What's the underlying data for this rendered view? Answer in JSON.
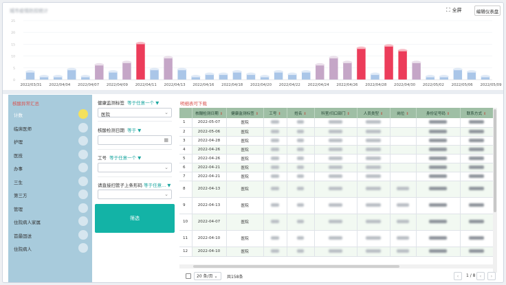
{
  "header": {
    "title": "城市疫情防控统计",
    "fullscreen_label": "全屏",
    "edit_label": "编辑仪表盘"
  },
  "chart_data": {
    "type": "bar",
    "ylim": [
      0,
      25
    ],
    "y_ticks": [
      "25",
      "20",
      "15",
      "10",
      "5",
      "0"
    ],
    "x_tick_labels": [
      "2022/03/31",
      "2022/04/04",
      "2022/04/07",
      "2022/04/09",
      "2022/04/11",
      "2022/04/13",
      "2022/04/16",
      "2022/04/18",
      "2022/04/20",
      "2022/04/22",
      "2022/04/24",
      "2022/04/26",
      "2022/04/28",
      "2022/04/30",
      "2022/05/02",
      "2022/05/06",
      "2022/05/09"
    ],
    "values": [
      3,
      1,
      1,
      4,
      1,
      6,
      3,
      7,
      15,
      4,
      9,
      4,
      1,
      2,
      2,
      3,
      2,
      1,
      3,
      2,
      3,
      6,
      9,
      7,
      13,
      2,
      14,
      12,
      7,
      1,
      1,
      4,
      3,
      1
    ],
    "bar_colors": {
      "low": "#aac6e8",
      "mid": "#c5a6c7",
      "high": "#ec3c5a"
    }
  },
  "left": {
    "title": "核酸异常汇总",
    "items": [
      "计数",
      "临床医师",
      "护理",
      "医技",
      "办事",
      "三生",
      "第三方",
      "管理",
      "住院病人家属",
      "首最固送",
      "住院病人"
    ]
  },
  "filters": {
    "field1_label": "健康监测标签",
    "field1_cond": "等于任意一个 ▼",
    "field1_value": "医院",
    "field2_label": "核酸检测日期",
    "field2_cond": "等于 ▼",
    "field3_label": "工号",
    "field3_cond": "等于任意一个 ▼",
    "field4_label": "请直接扫管子上条形码",
    "field4_cond": "等于任意...",
    "filter_button": "筛选"
  },
  "table": {
    "title": "明细表可下载",
    "columns": [
      "",
      "核酸检测日期",
      "健康监测标签",
      "工号",
      "姓名",
      "科室/归口部门",
      "人员类型",
      "岗位",
      "身份证号码",
      "联系方式"
    ],
    "rows": [
      {
        "idx": "1",
        "date": "2022-05-07",
        "tag": "医院"
      },
      {
        "idx": "2",
        "date": "2022-05-06",
        "tag": "医院"
      },
      {
        "idx": "3",
        "date": "2022-04-28",
        "tag": "医院"
      },
      {
        "idx": "4",
        "date": "2022-04-26",
        "tag": "医院"
      },
      {
        "idx": "5",
        "date": "2022-04-26",
        "tag": "医院"
      },
      {
        "idx": "6",
        "date": "2022-04-21",
        "tag": "医院"
      },
      {
        "idx": "7",
        "date": "2022-04-21",
        "tag": "医院"
      },
      {
        "idx": "8",
        "date": "2022-04-13",
        "tag": "医院"
      },
      {
        "idx": "9",
        "date": "2022-04-13",
        "tag": "医院"
      },
      {
        "idx": "10",
        "date": "2022-04-07",
        "tag": "医院"
      },
      {
        "idx": "11",
        "date": "2022-04-10",
        "tag": "医院"
      },
      {
        "idx": "12",
        "date": "2022-04-10",
        "tag": "医院"
      }
    ]
  },
  "pager": {
    "page_size": "20 条/页",
    "total": "共158条",
    "current": "1 / 8",
    "prev": "‹",
    "first": "‹",
    "next": "›"
  }
}
